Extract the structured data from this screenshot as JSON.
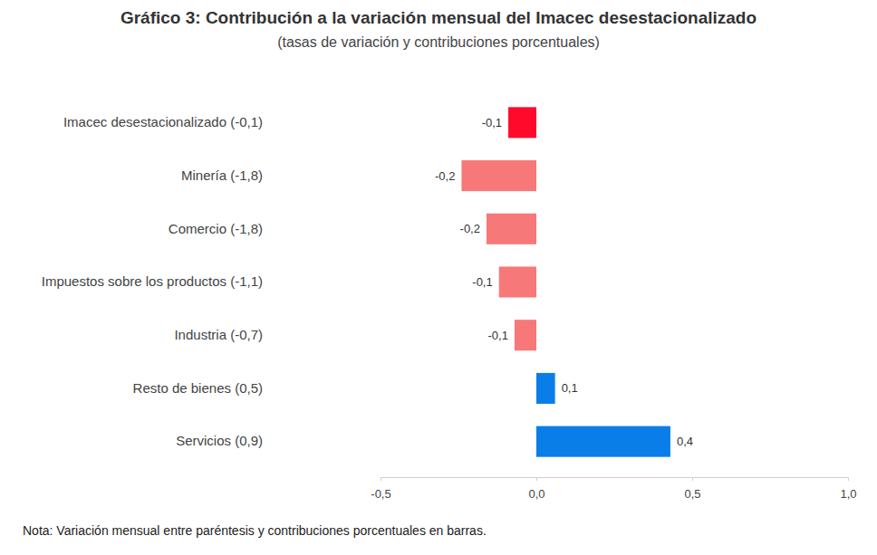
{
  "chart_data": {
    "type": "bar",
    "orientation": "horizontal",
    "title": "Gráfico 3: Contribución a la variación mensual del Imacec desestacionalizado",
    "subtitle": "(tasas de variación y contribuciones porcentuales)",
    "note": "Nota: Variación mensual entre paréntesis y contribuciones porcentuales en barras.",
    "categories": [
      "Imacec desestacionalizado (-0,1)",
      "Minería (-1,8)",
      "Comercio (-1,8)",
      "Impuestos sobre los productos (-1,1)",
      "Industria (-0,7)",
      "Resto de bienes (0,5)",
      "Servicios (0,9)"
    ],
    "values": [
      -0.09,
      -0.24,
      -0.16,
      -0.12,
      -0.07,
      0.06,
      0.43
    ],
    "value_labels": [
      "-0,1",
      "-0,2",
      "-0,2",
      "-0,1",
      "-0,1",
      "0,1",
      "0,4"
    ],
    "colors": [
      "#ff0a2a",
      "#f77878",
      "#f77878",
      "#f77878",
      "#f77878",
      "#0a7ee8",
      "#0a7ee8"
    ],
    "data_labels": true,
    "grid": false,
    "xlim": [
      -0.5,
      1.0
    ],
    "xticks": [
      {
        "value": -0.5,
        "label": "-0,5"
      },
      {
        "value": 0,
        "label": "0,0"
      },
      {
        "value": 0.5,
        "label": "0,5"
      },
      {
        "value": 1.0,
        "label": "1,0"
      }
    ]
  }
}
